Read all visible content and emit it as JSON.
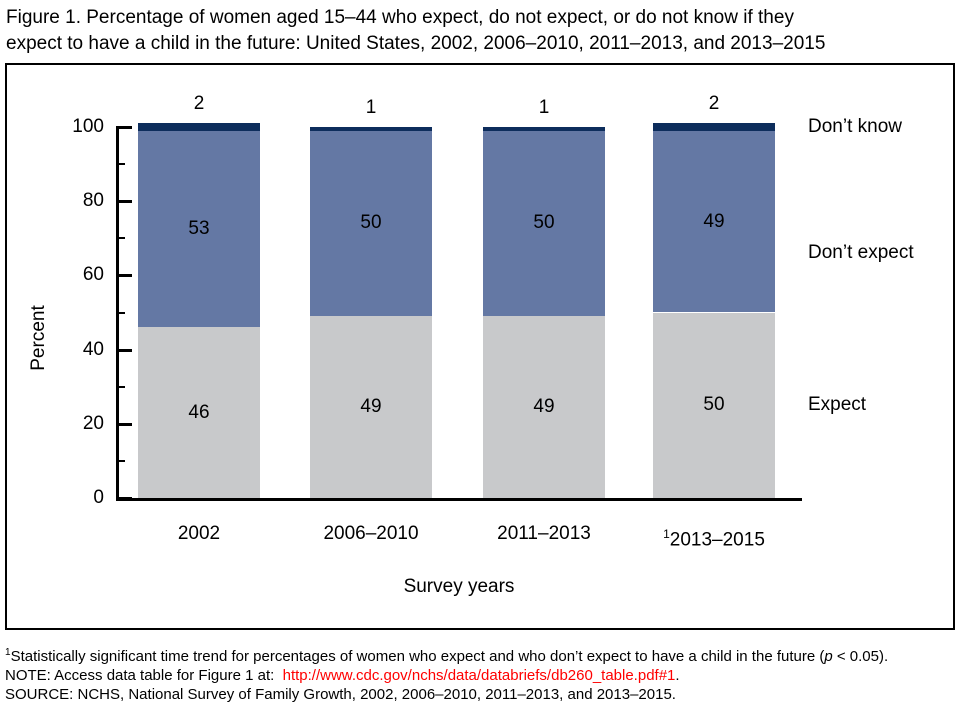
{
  "figure": {
    "title_line1": "Figure 1. Percentage of women aged 15–44 who expect, do not expect, or do not know if they",
    "title_line2": "expect to have a child in the future: United States, 2002, 2006–2010, 2011–2013, and 2013–2015"
  },
  "chart_data": {
    "type": "bar",
    "stacked": true,
    "xlabel": "Survey years",
    "ylabel": "Percent",
    "ylim": [
      0,
      100
    ],
    "yticks": [
      0,
      20,
      40,
      60,
      80,
      100
    ],
    "minor_yticks": [
      10,
      30,
      50,
      70,
      90
    ],
    "grid": false,
    "categories": [
      {
        "sup": "",
        "label": "2002"
      },
      {
        "sup": "",
        "label": "2006–2010"
      },
      {
        "sup": "",
        "label": "2011–2013"
      },
      {
        "sup": "1",
        "label": "2013–2015"
      }
    ],
    "series": [
      {
        "name": "Expect",
        "color": "#c8c9cb",
        "values": [
          46,
          49,
          49,
          50
        ]
      },
      {
        "name": "Don’t expect",
        "color": "#6478a4",
        "values": [
          53,
          50,
          50,
          49
        ]
      },
      {
        "name": "Don’t know",
        "color": "#0d2d5c",
        "values": [
          2,
          1,
          1,
          2
        ]
      }
    ],
    "label_color": "#000000",
    "legend_position": "right",
    "right_labels": [
      {
        "text": "Don’t know",
        "at_percent": 100
      },
      {
        "text": "Don’t expect",
        "at_percent": 66
      },
      {
        "text": "Expect",
        "at_percent": 25
      }
    ]
  },
  "footnotes": {
    "fn1_sup": "1",
    "fn1_pre": "Statistically significant time trend for percentages of women who expect and who don’t expect to have a child in the future (",
    "fn1_italic": "p",
    "fn1_post": " < 0.05).",
    "note_prefix": "NOTE: Access data table for Figure 1 at:  ",
    "note_link": "http://www.cdc.gov/nchs/data/databriefs/db260_table.pdf#1",
    "note_suffix": ".",
    "source": "SOURCE: NCHS, National Survey of Family Growth, 2002, 2006–2010, 2011–2013, and 2013–2015.",
    "link_color": "#ff0000"
  }
}
